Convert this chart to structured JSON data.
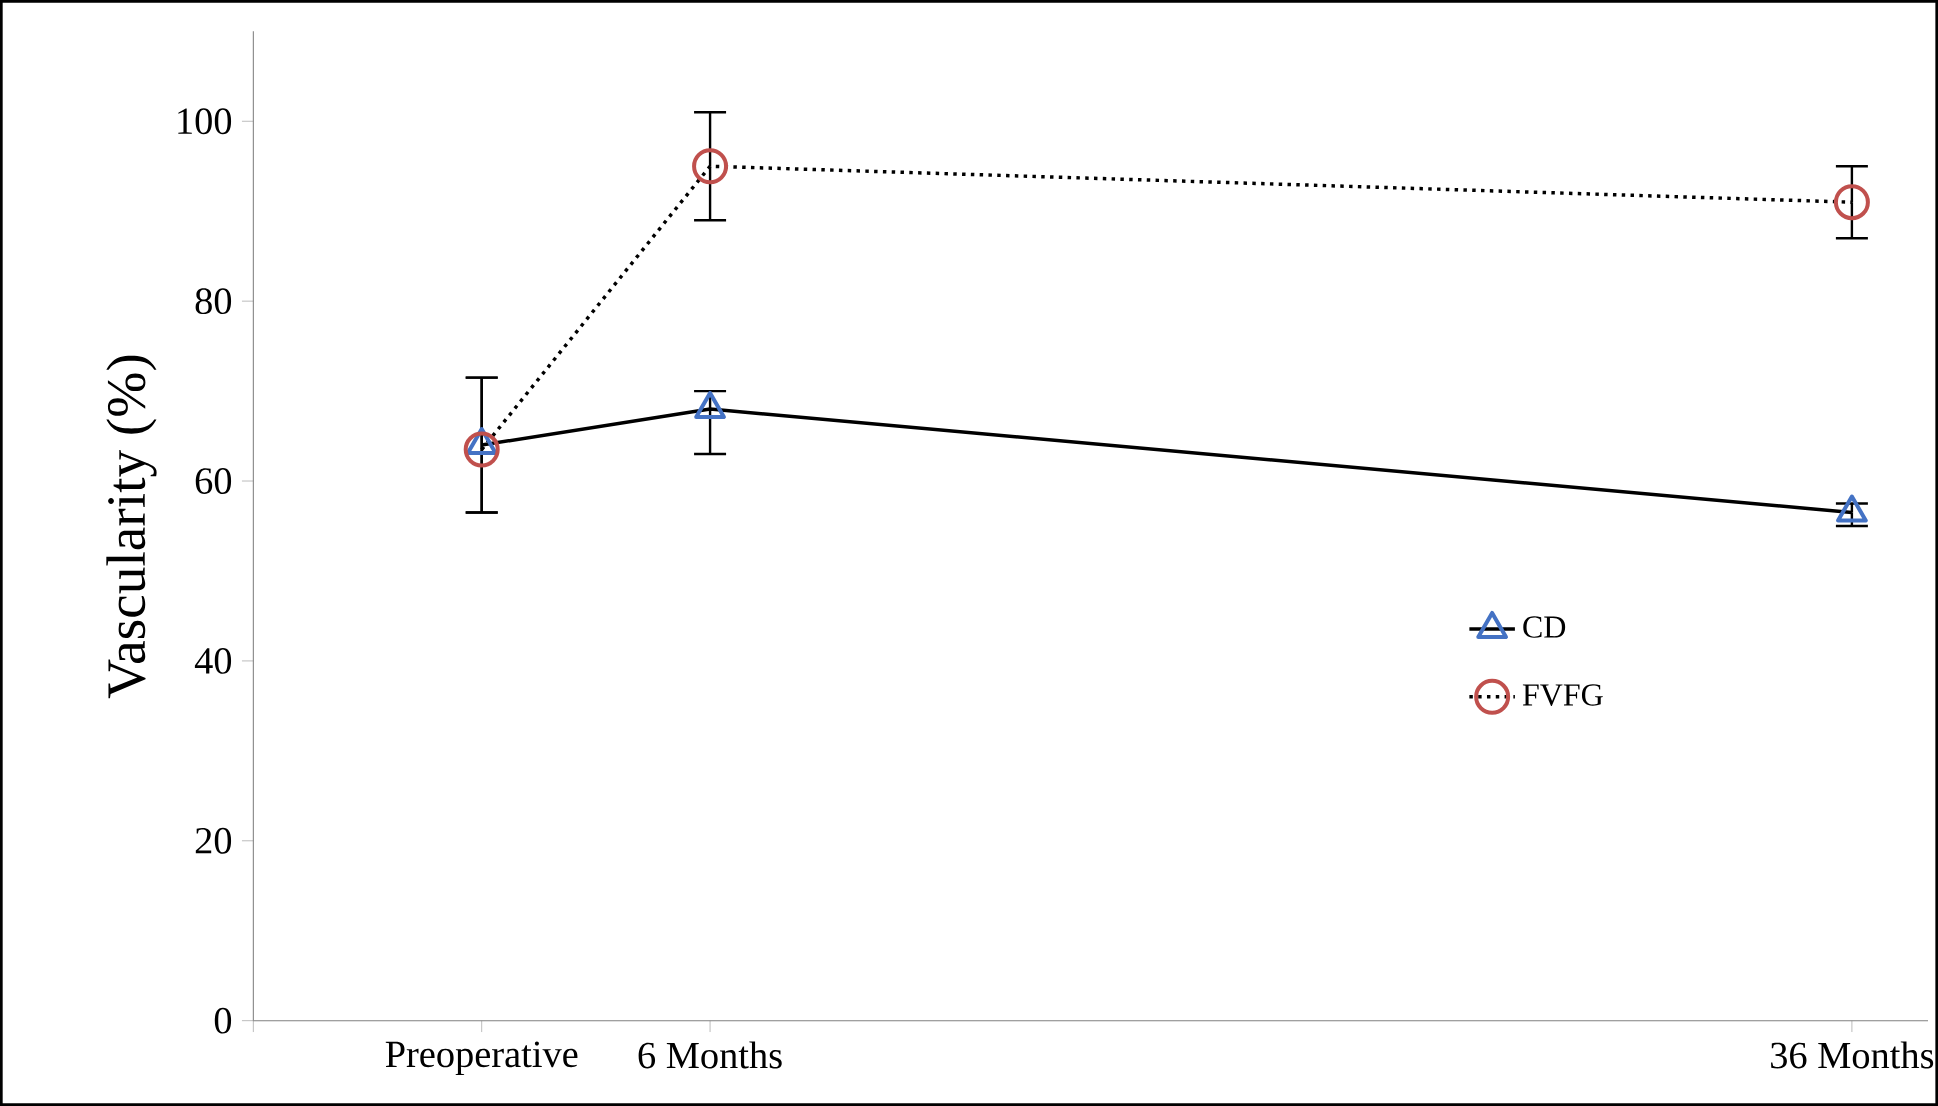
{
  "chart_data": {
    "type": "line",
    "ylabel": "Vascularity (%)",
    "x": [
      0,
      6,
      36
    ],
    "xlim": [
      -6,
      38
    ],
    "xticks": [
      {
        "value": -6,
        "label": null
      },
      {
        "value": 0,
        "label": "Preoperative"
      },
      {
        "value": 6,
        "label": "6 Months"
      },
      {
        "value": 36,
        "label": "36 Months"
      }
    ],
    "ylim": [
      0,
      110
    ],
    "yticks": [
      0,
      20,
      40,
      60,
      80,
      100
    ],
    "series": [
      {
        "name": "CD",
        "color": "#4472c4",
        "values": [
          64,
          68,
          56.5
        ],
        "errors": [
          [
            56.5,
            71.5
          ],
          [
            63,
            70
          ],
          [
            55,
            57.5
          ]
        ],
        "marker": "triangle",
        "line_style": "solid"
      },
      {
        "name": "FVFG",
        "color": "#c0504d",
        "values": [
          63.5,
          95,
          91
        ],
        "errors": [
          [
            56.5,
            71.5
          ],
          [
            89,
            101
          ],
          [
            87,
            95
          ]
        ],
        "marker": "circle",
        "line_style": "dotted"
      }
    ],
    "legend": "right",
    "grid": false
  }
}
